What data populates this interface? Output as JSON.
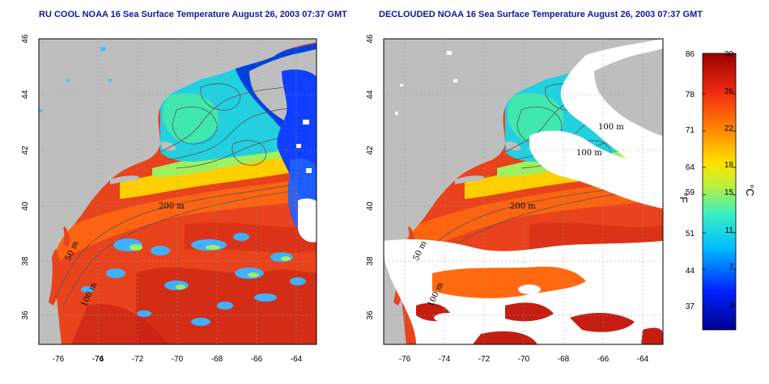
{
  "panels": [
    {
      "id": "left",
      "title": "RU COOL NOAA 16 Sea Surface Temperature August 26, 2003 07:37 GMT",
      "clouds_removed": false,
      "contour_labels": [
        "200 m",
        "50 m",
        "100 m"
      ]
    },
    {
      "id": "right",
      "title": "DECLOUDED NOAA 16 Sea Surface Temperature August 26, 2003 07:37 GMT",
      "clouds_removed": true,
      "contour_labels": [
        "200 m",
        "50 m",
        "100 m",
        "100 m",
        "100 m"
      ]
    }
  ],
  "axes": {
    "lon_ticks": [
      "-76",
      "-74",
      "-72",
      "-70",
      "-68",
      "-66",
      "-64"
    ],
    "lat_ticks": [
      "36",
      "38",
      "40",
      "42",
      "44",
      "46"
    ],
    "lon_range": [
      -77.3,
      -63.1
    ],
    "lat_range": [
      35.0,
      46.0
    ]
  },
  "colorbar": {
    "fahrenheit_ticks": [
      "86",
      "78",
      "71",
      "64",
      "59",
      "51",
      "44",
      "37"
    ],
    "celsius_ticks": [
      "30",
      "26",
      "22",
      "18",
      "15",
      "11",
      "7",
      "3"
    ],
    "fahrenheit_unit": "°F",
    "celsius_unit": "°C",
    "range_c": [
      0,
      30
    ]
  },
  "colors": {
    "land": "#bebebe",
    "ocean_warm": "#e8431c",
    "title": "#0a1aa0"
  }
}
